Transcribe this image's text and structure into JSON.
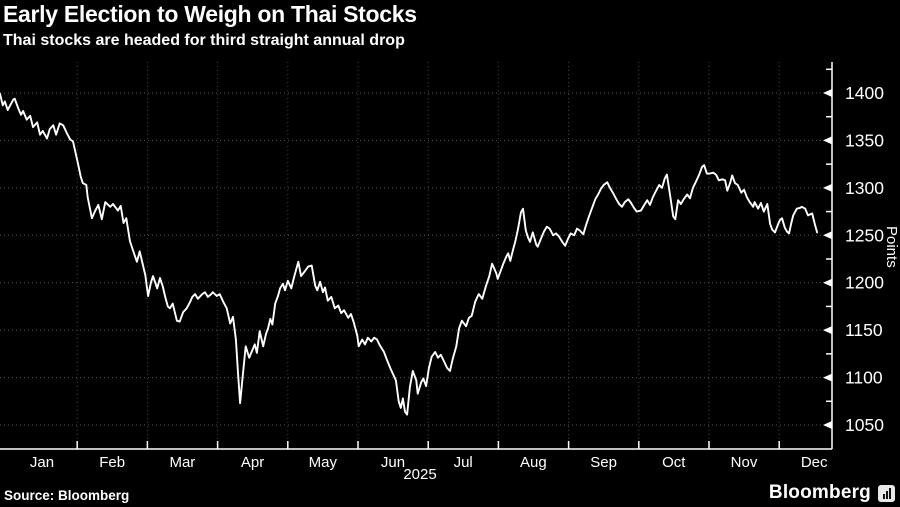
{
  "header": {
    "title": "Early Election to Weigh on Thai Stocks",
    "subtitle": "Thai stocks are headed for third straight annual drop"
  },
  "footer": {
    "source": "Source: Bloomberg",
    "brand": "Bloomberg"
  },
  "colors": {
    "background": "#000000",
    "foreground": "#ffffff",
    "line": "#ffffff",
    "grid_horizontal": "#555555",
    "grid_vertical": "#454545",
    "axis": "#ffffff"
  },
  "chart_data": {
    "type": "line",
    "title": "Early Election to Weigh on Thai Stocks",
    "subtitle": "Thai stocks are headed for third straight annual drop",
    "ylabel": "Points",
    "x_year_label": "2025",
    "x_unit": "month index (0 = start of Jan 2025)",
    "x_tick_labels": [
      "Jan",
      "Feb",
      "Mar",
      "Apr",
      "May",
      "Jun",
      "Jul",
      "Aug",
      "Sep",
      "Oct",
      "Nov",
      "Dec"
    ],
    "y_ticks": [
      1050,
      1100,
      1150,
      1200,
      1250,
      1300,
      1350,
      1400
    ],
    "y_minor_step": 25,
    "ylim": [
      1025,
      1432
    ],
    "grid": true,
    "legend": "none",
    "points": [
      [
        -0.1,
        1399
      ],
      [
        -0.06,
        1387
      ],
      [
        -0.03,
        1391
      ],
      [
        0.01,
        1382
      ],
      [
        0.09,
        1393
      ],
      [
        0.11,
        1394
      ],
      [
        0.16,
        1384
      ],
      [
        0.2,
        1377
      ],
      [
        0.23,
        1381
      ],
      [
        0.28,
        1372
      ],
      [
        0.33,
        1376
      ],
      [
        0.37,
        1364
      ],
      [
        0.43,
        1369
      ],
      [
        0.47,
        1356
      ],
      [
        0.51,
        1360
      ],
      [
        0.57,
        1352
      ],
      [
        0.61,
        1362
      ],
      [
        0.66,
        1366
      ],
      [
        0.7,
        1356
      ],
      [
        0.75,
        1368
      ],
      [
        0.8,
        1366
      ],
      [
        0.85,
        1358
      ],
      [
        0.9,
        1351
      ],
      [
        0.94,
        1349
      ],
      [
        1.01,
        1326
      ],
      [
        1.05,
        1312
      ],
      [
        1.08,
        1305
      ],
      [
        1.13,
        1303
      ],
      [
        1.15,
        1290
      ],
      [
        1.21,
        1268
      ],
      [
        1.25,
        1275
      ],
      [
        1.3,
        1282
      ],
      [
        1.35,
        1267
      ],
      [
        1.4,
        1285
      ],
      [
        1.47,
        1280
      ],
      [
        1.51,
        1283
      ],
      [
        1.58,
        1276
      ],
      [
        1.62,
        1281
      ],
      [
        1.66,
        1263
      ],
      [
        1.7,
        1268
      ],
      [
        1.75,
        1244
      ],
      [
        1.79,
        1235
      ],
      [
        1.85,
        1222
      ],
      [
        1.89,
        1233
      ],
      [
        1.97,
        1208
      ],
      [
        2.01,
        1186
      ],
      [
        2.05,
        1200
      ],
      [
        2.08,
        1207
      ],
      [
        2.14,
        1194
      ],
      [
        2.18,
        1205
      ],
      [
        2.22,
        1196
      ],
      [
        2.25,
        1186
      ],
      [
        2.29,
        1175
      ],
      [
        2.32,
        1173
      ],
      [
        2.36,
        1178
      ],
      [
        2.42,
        1160
      ],
      [
        2.46,
        1159
      ],
      [
        2.51,
        1169
      ],
      [
        2.56,
        1173
      ],
      [
        2.61,
        1180
      ],
      [
        2.64,
        1185
      ],
      [
        2.68,
        1188
      ],
      [
        2.72,
        1183
      ],
      [
        2.78,
        1188
      ],
      [
        2.82,
        1190
      ],
      [
        2.86,
        1185
      ],
      [
        2.91,
        1188
      ],
      [
        2.93,
        1190
      ],
      [
        2.99,
        1186
      ],
      [
        3.03,
        1188
      ],
      [
        3.08,
        1180
      ],
      [
        3.13,
        1173
      ],
      [
        3.18,
        1157
      ],
      [
        3.22,
        1164
      ],
      [
        3.26,
        1140
      ],
      [
        3.29,
        1105
      ],
      [
        3.32,
        1073
      ],
      [
        3.35,
        1096
      ],
      [
        3.4,
        1133
      ],
      [
        3.45,
        1121
      ],
      [
        3.49,
        1128
      ],
      [
        3.53,
        1135
      ],
      [
        3.56,
        1126
      ],
      [
        3.6,
        1149
      ],
      [
        3.65,
        1133
      ],
      [
        3.69,
        1146
      ],
      [
        3.72,
        1152
      ],
      [
        3.75,
        1162
      ],
      [
        3.78,
        1156
      ],
      [
        3.82,
        1178
      ],
      [
        3.86,
        1186
      ],
      [
        3.89,
        1194
      ],
      [
        3.93,
        1199
      ],
      [
        3.96,
        1192
      ],
      [
        4.0,
        1202
      ],
      [
        4.05,
        1194
      ],
      [
        4.09,
        1206
      ],
      [
        4.15,
        1222
      ],
      [
        4.19,
        1207
      ],
      [
        4.25,
        1213
      ],
      [
        4.29,
        1217
      ],
      [
        4.34,
        1218
      ],
      [
        4.39,
        1197
      ],
      [
        4.42,
        1192
      ],
      [
        4.46,
        1201
      ],
      [
        4.5,
        1190
      ],
      [
        4.53,
        1195
      ],
      [
        4.57,
        1181
      ],
      [
        4.62,
        1185
      ],
      [
        4.67,
        1173
      ],
      [
        4.72,
        1176
      ],
      [
        4.76,
        1168
      ],
      [
        4.8,
        1171
      ],
      [
        4.86,
        1163
      ],
      [
        4.9,
        1167
      ],
      [
        4.94,
        1158
      ],
      [
        4.99,
        1144
      ],
      [
        5.01,
        1133
      ],
      [
        5.06,
        1140
      ],
      [
        5.1,
        1135
      ],
      [
        5.14,
        1142
      ],
      [
        5.19,
        1138
      ],
      [
        5.23,
        1142
      ],
      [
        5.27,
        1140
      ],
      [
        5.31,
        1134
      ],
      [
        5.37,
        1127
      ],
      [
        5.41,
        1119
      ],
      [
        5.46,
        1110
      ],
      [
        5.54,
        1097
      ],
      [
        5.58,
        1075
      ],
      [
        5.61,
        1068
      ],
      [
        5.64,
        1078
      ],
      [
        5.67,
        1064
      ],
      [
        5.7,
        1061
      ],
      [
        5.74,
        1090
      ],
      [
        5.78,
        1107
      ],
      [
        5.83,
        1097
      ],
      [
        5.85,
        1083
      ],
      [
        5.9,
        1095
      ],
      [
        5.93,
        1099
      ],
      [
        5.97,
        1091
      ],
      [
        6.01,
        1110
      ],
      [
        6.05,
        1122
      ],
      [
        6.1,
        1127
      ],
      [
        6.14,
        1121
      ],
      [
        6.18,
        1124
      ],
      [
        6.22,
        1118
      ],
      [
        6.27,
        1110
      ],
      [
        6.31,
        1107
      ],
      [
        6.35,
        1120
      ],
      [
        6.4,
        1133
      ],
      [
        6.44,
        1152
      ],
      [
        6.48,
        1160
      ],
      [
        6.54,
        1154
      ],
      [
        6.58,
        1163
      ],
      [
        6.62,
        1165
      ],
      [
        6.67,
        1180
      ],
      [
        6.72,
        1188
      ],
      [
        6.77,
        1183
      ],
      [
        6.82,
        1196
      ],
      [
        6.87,
        1207
      ],
      [
        6.91,
        1220
      ],
      [
        6.97,
        1210
      ],
      [
        6.99,
        1204
      ],
      [
        7.04,
        1214
      ],
      [
        7.07,
        1220
      ],
      [
        7.11,
        1227
      ],
      [
        7.14,
        1231
      ],
      [
        7.17,
        1223
      ],
      [
        7.21,
        1235
      ],
      [
        7.24,
        1243
      ],
      [
        7.28,
        1257
      ],
      [
        7.32,
        1274
      ],
      [
        7.35,
        1278
      ],
      [
        7.39,
        1255
      ],
      [
        7.42,
        1248
      ],
      [
        7.45,
        1243
      ],
      [
        7.49,
        1253
      ],
      [
        7.54,
        1240
      ],
      [
        7.56,
        1238
      ],
      [
        7.61,
        1247
      ],
      [
        7.65,
        1254
      ],
      [
        7.69,
        1259
      ],
      [
        7.73,
        1257
      ],
      [
        7.78,
        1250
      ],
      [
        7.82,
        1252
      ],
      [
        7.86,
        1249
      ],
      [
        7.91,
        1243
      ],
      [
        7.95,
        1239
      ],
      [
        7.99,
        1246
      ],
      [
        8.03,
        1252
      ],
      [
        8.08,
        1250
      ],
      [
        8.12,
        1257
      ],
      [
        8.16,
        1255
      ],
      [
        8.21,
        1251
      ],
      [
        8.25,
        1261
      ],
      [
        8.29,
        1270
      ],
      [
        8.33,
        1278
      ],
      [
        8.38,
        1288
      ],
      [
        8.42,
        1293
      ],
      [
        8.46,
        1299
      ],
      [
        8.5,
        1303
      ],
      [
        8.55,
        1306
      ],
      [
        8.59,
        1300
      ],
      [
        8.63,
        1295
      ],
      [
        8.68,
        1288
      ],
      [
        8.72,
        1283
      ],
      [
        8.76,
        1280
      ],
      [
        8.8,
        1285
      ],
      [
        8.85,
        1288
      ],
      [
        8.89,
        1284
      ],
      [
        8.93,
        1279
      ],
      [
        8.97,
        1275
      ],
      [
        9.03,
        1276
      ],
      [
        9.07,
        1281
      ],
      [
        9.12,
        1287
      ],
      [
        9.16,
        1282
      ],
      [
        9.2,
        1290
      ],
      [
        9.24,
        1296
      ],
      [
        9.29,
        1303
      ],
      [
        9.33,
        1300
      ],
      [
        9.37,
        1310
      ],
      [
        9.4,
        1314
      ],
      [
        9.44,
        1295
      ],
      [
        9.49,
        1270
      ],
      [
        9.52,
        1267
      ],
      [
        9.56,
        1287
      ],
      [
        9.6,
        1283
      ],
      [
        9.64,
        1288
      ],
      [
        9.69,
        1293
      ],
      [
        9.73,
        1289
      ],
      [
        9.77,
        1300
      ],
      [
        9.81,
        1306
      ],
      [
        9.86,
        1314
      ],
      [
        9.9,
        1322
      ],
      [
        9.93,
        1324
      ],
      [
        9.97,
        1315
      ],
      [
        10.01,
        1315
      ],
      [
        10.06,
        1316
      ],
      [
        10.1,
        1314
      ],
      [
        10.14,
        1308
      ],
      [
        10.19,
        1309
      ],
      [
        10.23,
        1308
      ],
      [
        10.26,
        1297
      ],
      [
        10.3,
        1305
      ],
      [
        10.33,
        1313
      ],
      [
        10.37,
        1305
      ],
      [
        10.41,
        1303
      ],
      [
        10.46,
        1295
      ],
      [
        10.5,
        1298
      ],
      [
        10.54,
        1290
      ],
      [
        10.58,
        1285
      ],
      [
        10.63,
        1280
      ],
      [
        10.65,
        1285
      ],
      [
        10.7,
        1278
      ],
      [
        10.74,
        1284
      ],
      [
        10.78,
        1275
      ],
      [
        10.83,
        1283
      ],
      [
        10.87,
        1262
      ],
      [
        10.9,
        1256
      ],
      [
        10.94,
        1253
      ],
      [
        10.98,
        1261
      ],
      [
        11.01,
        1266
      ],
      [
        11.04,
        1268
      ],
      [
        11.08,
        1258
      ],
      [
        11.11,
        1254
      ],
      [
        11.14,
        1252
      ],
      [
        11.17,
        1262
      ],
      [
        11.2,
        1271
      ],
      [
        11.25,
        1278
      ],
      [
        11.3,
        1279
      ],
      [
        11.32,
        1280
      ],
      [
        11.37,
        1278
      ],
      [
        11.41,
        1271
      ],
      [
        11.44,
        1272
      ],
      [
        11.47,
        1273
      ],
      [
        11.51,
        1261
      ],
      [
        11.54,
        1253
      ]
    ]
  }
}
